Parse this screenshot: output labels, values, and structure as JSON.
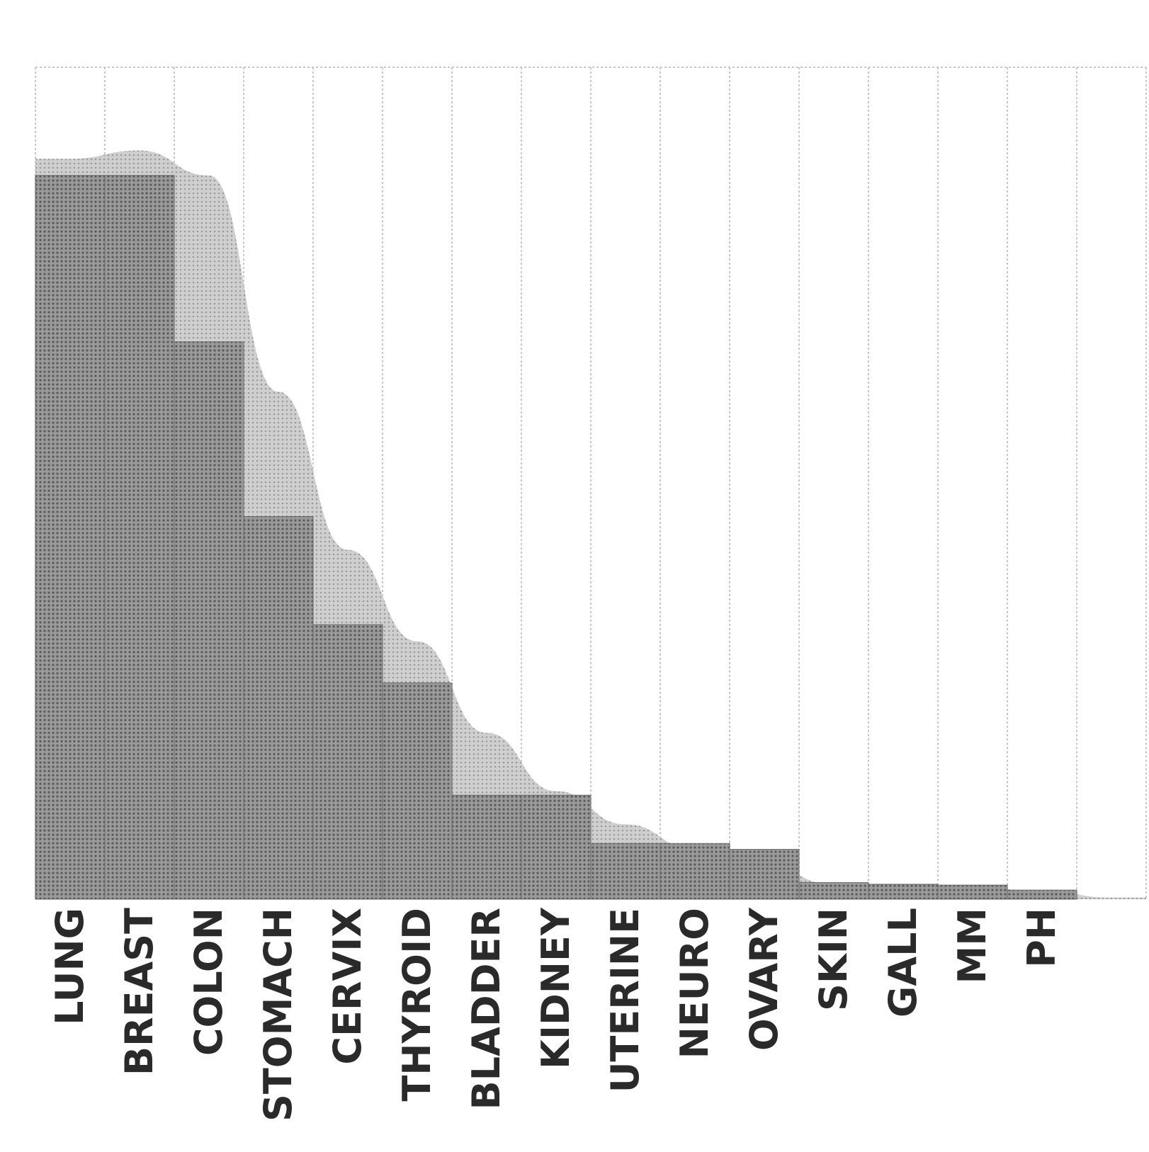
{
  "chart_data": {
    "type": "bar",
    "title": "",
    "xlabel": "",
    "ylabel": "",
    "ylim": [
      0,
      1
    ],
    "grid": true,
    "categories": [
      "LUNG",
      "BREAST",
      "COLON",
      "STOMACH",
      "CERVIX",
      "THYROID",
      "BLADDER",
      "KIDNEY",
      "UTERINE",
      "NEURO",
      "OVARY",
      "SKIN",
      "GALL",
      "MM",
      "PH",
      ""
    ],
    "values": [
      0.87,
      0.87,
      0.67,
      0.46,
      0.33,
      0.26,
      0.125,
      0.125,
      0.067,
      0.067,
      0.06,
      0.02,
      0.018,
      0.017,
      0.011,
      0.0
    ],
    "trend": [
      0.89,
      0.9,
      0.87,
      0.61,
      0.42,
      0.31,
      0.2,
      0.13,
      0.09,
      0.06,
      0.04,
      0.018,
      0.016,
      0.014,
      0.01,
      0.002
    ],
    "colors": {
      "bar": "#8a8a8a",
      "area": "#b8b8b8",
      "grid": "#c8c8c8",
      "text": "#2a2a2a"
    }
  }
}
